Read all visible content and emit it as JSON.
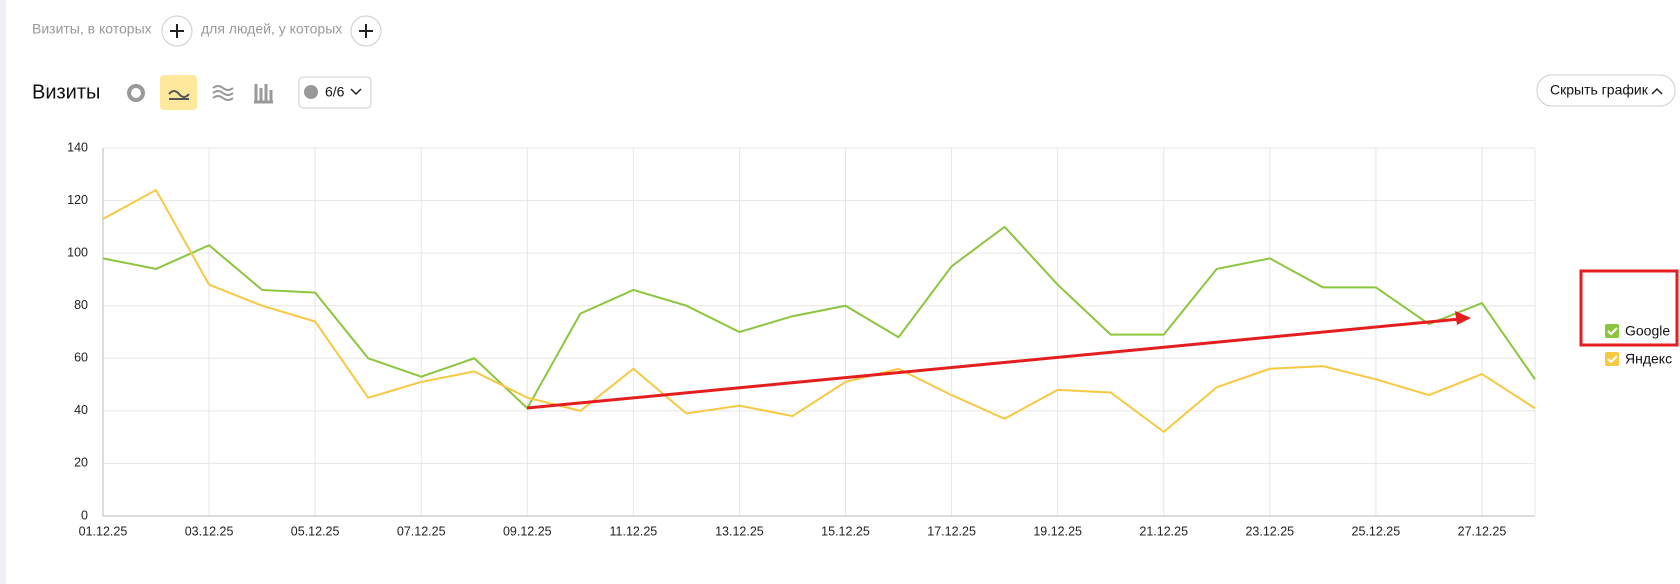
{
  "ui": {
    "filter_visits": "Визиты, в которых",
    "filter_people": "для людей, у которых",
    "section_title": "Визиты",
    "annotations_counter": "6/6",
    "hide_chart": "Скрыть график"
  },
  "chart_data": {
    "type": "line",
    "categories": [
      "01.12.25",
      null,
      "03.12.25",
      null,
      "05.12.25",
      null,
      "07.12.25",
      null,
      "09.12.25",
      null,
      "11.12.25",
      null,
      "13.12.25",
      null,
      "15.12.25",
      null,
      "17.12.25",
      null,
      "19.12.25",
      null,
      "21.12.25",
      null,
      "23.12.25",
      null,
      "25.12.25",
      null,
      "27.12.25",
      null
    ],
    "x_label_colors": [
      "#222",
      null,
      "#222",
      null,
      "#222",
      null,
      "#b3262a",
      null,
      "#222",
      null,
      "#222",
      null,
      "#b3262a",
      null,
      "#222",
      null,
      "#222",
      null,
      "#222",
      null,
      "#b3262a",
      null,
      "#222",
      null,
      "#222",
      null,
      "#b3262a",
      null
    ],
    "series": [
      {
        "name": "Google",
        "color": "#8cc63f",
        "values": [
          98,
          94,
          103,
          86,
          85,
          60,
          53,
          60,
          41,
          77,
          86,
          80,
          70,
          76,
          80,
          68,
          95,
          110,
          88,
          69,
          69,
          94,
          98,
          87,
          87,
          73,
          81,
          52
        ]
      },
      {
        "name": "Яндекс",
        "color": "#f7c842",
        "values": [
          113,
          124,
          88,
          80,
          74,
          45,
          51,
          55,
          45,
          40,
          56,
          39,
          42,
          38,
          51,
          56,
          46,
          37,
          48,
          47,
          32,
          49,
          56,
          57,
          52,
          46,
          54,
          41
        ]
      }
    ],
    "ylim": [
      0,
      140
    ],
    "yticks": [
      0,
      20,
      40,
      60,
      80,
      100,
      120,
      140
    ],
    "grid": true
  }
}
